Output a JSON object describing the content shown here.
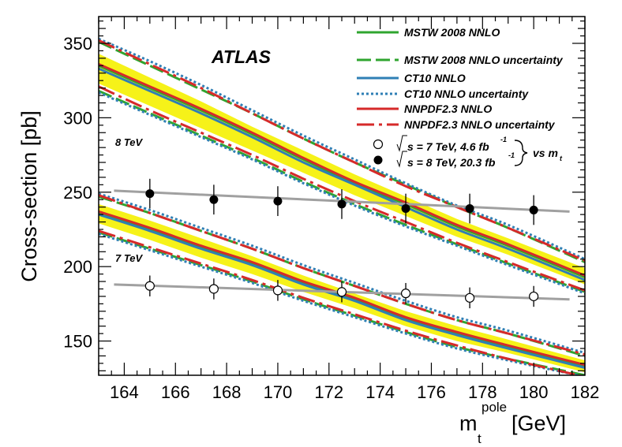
{
  "chart_data": {
    "type": "line",
    "title": "ATLAS",
    "xlabel": "m",
    "xlabel_superscript": "pole",
    "xlabel_subscript": "t",
    "xlabel_unit": "[GeV]",
    "ylabel": "Cross-section [pb]",
    "xlim": [
      163,
      182
    ],
    "ylim": [
      127,
      368
    ],
    "xticks": [
      "164",
      "166",
      "168",
      "170",
      "172",
      "174",
      "176",
      "178",
      "180",
      "182"
    ],
    "yticks": [
      "150",
      "200",
      "250",
      "300",
      "350"
    ],
    "annotations": {
      "e8": "8 TeV",
      "e7": "7 TeV"
    },
    "colors": {
      "band": "#f6f219",
      "mstw": "#2fa52f",
      "ct10": "#2f7fb5",
      "nnpdf": "#d62a2a",
      "fit": "#a0a0a0",
      "data": "#000000"
    },
    "theory": {
      "s8": {
        "x": [
          163,
          165,
          167,
          169,
          171,
          173,
          175,
          177,
          179,
          182
        ],
        "nnpdf": [
          336,
          321,
          306,
          290,
          273,
          257,
          243,
          228,
          215,
          194
        ],
        "nnpdf_up": [
          352,
          336,
          320,
          303,
          286,
          270,
          254,
          240,
          226,
          204
        ],
        "nnpdf_dn": [
          321,
          305,
          290,
          275,
          259,
          244,
          230,
          216,
          203,
          184
        ],
        "ct10": [
          333,
          318,
          303,
          287,
          270,
          255,
          240,
          225,
          212,
          191
        ],
        "ct10_up": [
          353,
          338,
          322,
          305,
          288,
          272,
          256,
          241,
          228,
          205
        ],
        "ct10_dn": [
          317,
          302,
          287,
          272,
          256,
          241,
          227,
          214,
          201,
          182
        ],
        "mstw": [
          335,
          320,
          305,
          289,
          272,
          256,
          242,
          227,
          214,
          193
        ],
        "mstw_up": [
          351,
          335,
          319,
          303,
          286,
          270,
          255,
          240,
          226,
          203
        ],
        "mstw_dn": [
          318,
          303,
          288,
          273,
          257,
          242,
          228,
          215,
          202,
          183
        ],
        "band_up": [
          343,
          327,
          311,
          294,
          278,
          262,
          247,
          232,
          219,
          199
        ],
        "band_dn": [
          323,
          308,
          293,
          278,
          263,
          248,
          234,
          220,
          208,
          188
        ]
      },
      "s7": {
        "x": [
          163,
          165,
          167,
          169,
          171,
          173,
          175,
          177,
          179,
          182
        ],
        "nnpdf": [
          237,
          226,
          214,
          203,
          190,
          179,
          166,
          156,
          147,
          134
        ],
        "nnpdf_up": [
          248,
          236,
          224,
          212,
          199,
          187,
          175,
          164,
          155,
          141
        ],
        "nnpdf_dn": [
          224,
          213,
          202,
          191,
          179,
          168,
          157,
          147,
          138,
          126
        ],
        "ct10": [
          235,
          224,
          212,
          201,
          188,
          177,
          164,
          154,
          145,
          132
        ],
        "ct10_up": [
          249,
          238,
          226,
          214,
          201,
          189,
          177,
          166,
          157,
          142
        ],
        "ct10_dn": [
          222,
          211,
          200,
          189,
          177,
          166,
          155,
          145,
          137,
          126
        ],
        "mstw": [
          236,
          225,
          213,
          202,
          189,
          178,
          165,
          155,
          146,
          133
        ],
        "mstw_up": [
          247,
          236,
          224,
          212,
          199,
          187,
          175,
          164,
          155,
          140
        ],
        "mstw_dn": [
          223,
          212,
          201,
          190,
          178,
          167,
          156,
          146,
          138,
          127
        ],
        "band_up": [
          242,
          231,
          219,
          207,
          194,
          182,
          170,
          160,
          151,
          137
        ],
        "band_dn": [
          229,
          218,
          206,
          195,
          183,
          172,
          160,
          150,
          142,
          129
        ]
      }
    },
    "fits": {
      "s8": {
        "x": [
          163.6,
          181.4
        ],
        "y": [
          251,
          237
        ]
      },
      "s7": {
        "x": [
          163.6,
          181.4
        ],
        "y": [
          188,
          178
        ]
      }
    },
    "data_points": {
      "s8": {
        "x": [
          165,
          167.5,
          170,
          172.5,
          175,
          177.5,
          180
        ],
        "y": [
          249,
          245,
          244,
          242,
          239,
          239,
          238
        ],
        "err": [
          10,
          10,
          10,
          10,
          10,
          10,
          10
        ]
      },
      "s7": {
        "x": [
          165,
          167.5,
          170,
          172.5,
          175,
          177.5,
          180
        ],
        "y": [
          187,
          185,
          184,
          183,
          182,
          179,
          180
        ],
        "err": [
          7,
          7,
          7,
          7,
          7,
          7,
          7
        ]
      }
    },
    "legend": {
      "position": "top-right",
      "items": [
        {
          "key": "mstw",
          "label": "MSTW 2008 NNLO",
          "style": "solid",
          "color": "#2fa52f"
        },
        {
          "key": "mstw_unc",
          "label": "MSTW 2008 NNLO uncertainty",
          "style": "dashed",
          "color": "#2fa52f"
        },
        {
          "key": "ct10",
          "label": "CT10 NNLO",
          "style": "solid",
          "color": "#2f7fb5"
        },
        {
          "key": "ct10_unc",
          "label": "CT10 NNLO uncertainty",
          "style": "dotted",
          "color": "#2f7fb5"
        },
        {
          "key": "nnpdf",
          "label": "NNPDF2.3 NNLO",
          "style": "solid",
          "color": "#d62a2a"
        },
        {
          "key": "nnpdf_unc",
          "label": "NNPDF2.3 NNLO uncertainty",
          "style": "dashdot",
          "color": "#d62a2a"
        }
      ],
      "data_7tev": {
        "sqrt": "s = 7 TeV, 4.6 fb",
        "exp": "-1"
      },
      "data_8tev": {
        "sqrt": "s = 8 TeV, 20.3 fb",
        "exp": "-1"
      },
      "vs_text": "vs m",
      "vs_sub": "t"
    }
  }
}
